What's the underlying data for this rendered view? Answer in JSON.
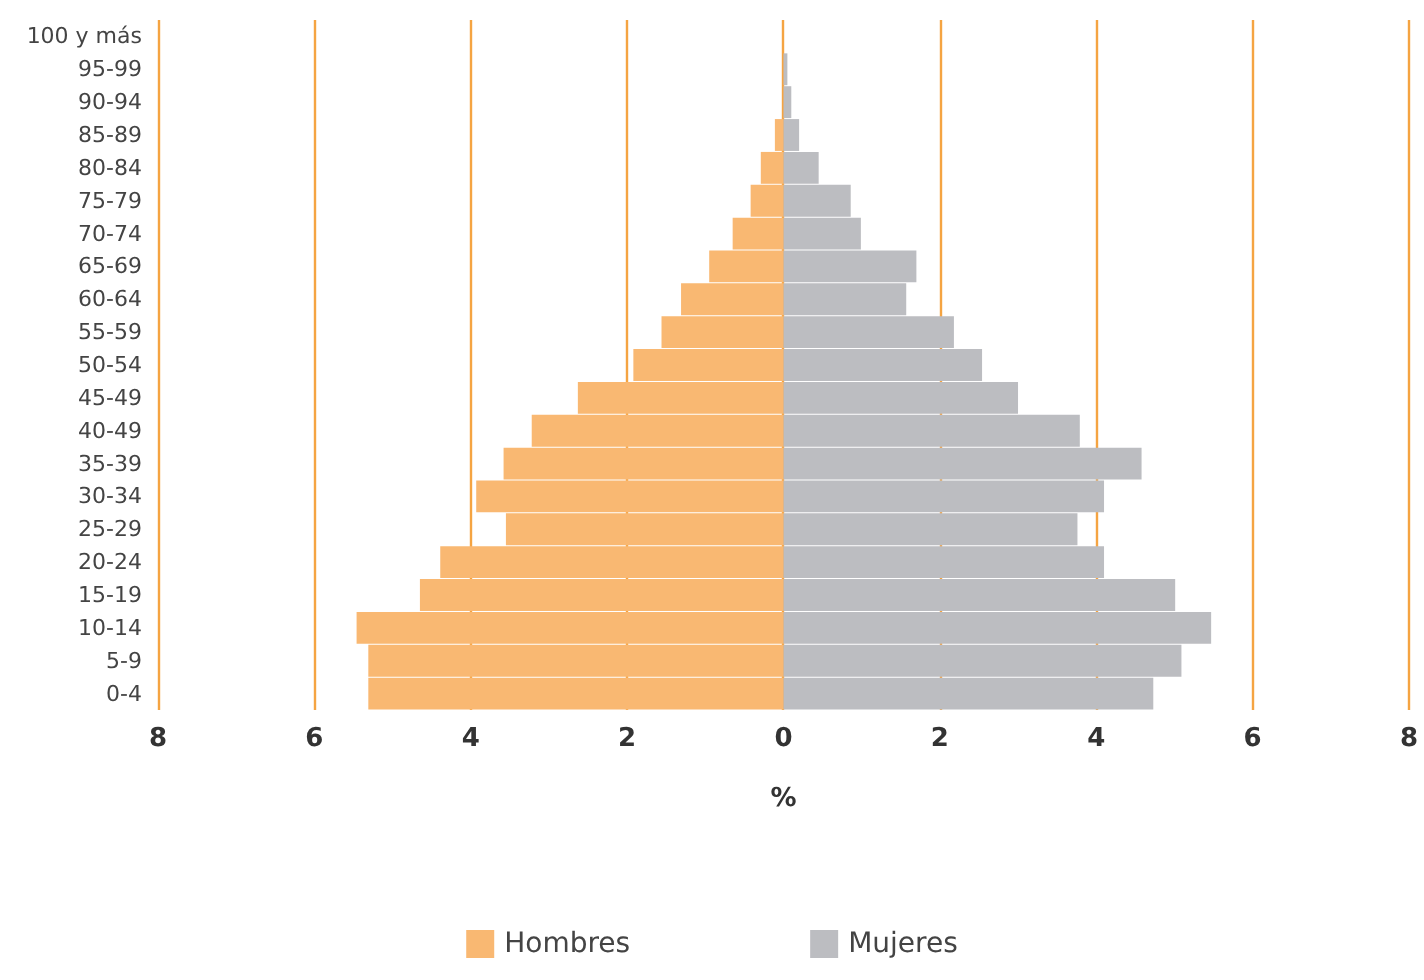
{
  "chart_data": {
    "type": "bar",
    "orientation": "horizontal",
    "xlabel": "%",
    "categories": [
      "100 y más",
      "95-99",
      "90-94",
      "85-89",
      "80-84",
      "75-79",
      "70-74",
      "65-69",
      "60-64",
      "55-59",
      "50-54",
      "45-49",
      "40-49",
      "35-39",
      "30-34",
      "25-29",
      "20-24",
      "15-19",
      "10-14",
      "5-9",
      "0-4"
    ],
    "series": [
      {
        "name": "Hombres",
        "color": "#f9b872",
        "values": [
          0,
          0,
          0,
          -0.11,
          -0.29,
          -0.42,
          -0.65,
          -0.95,
          -1.31,
          -1.56,
          -1.92,
          -2.63,
          -3.22,
          -3.58,
          -3.93,
          -3.55,
          -4.39,
          -4.65,
          -5.46,
          -5.31,
          -5.31
        ]
      },
      {
        "name": "Mujeres",
        "color": "#bcbdc1",
        "values": [
          0,
          0.05,
          0.1,
          0.2,
          0.45,
          0.86,
          0.99,
          1.7,
          1.57,
          2.18,
          2.54,
          3.0,
          3.79,
          4.58,
          4.1,
          3.76,
          4.1,
          5.01,
          5.47,
          5.09,
          4.73
        ]
      }
    ],
    "xlim": [
      -8,
      8
    ],
    "xticks": [
      {
        "value": -8,
        "label": "8"
      },
      {
        "value": -6,
        "label": "6"
      },
      {
        "value": -4,
        "label": "4"
      },
      {
        "value": -2,
        "label": "2"
      },
      0,
      2,
      4,
      6,
      8
    ],
    "stacked": true,
    "grid": "x",
    "legend": "bottom"
  }
}
